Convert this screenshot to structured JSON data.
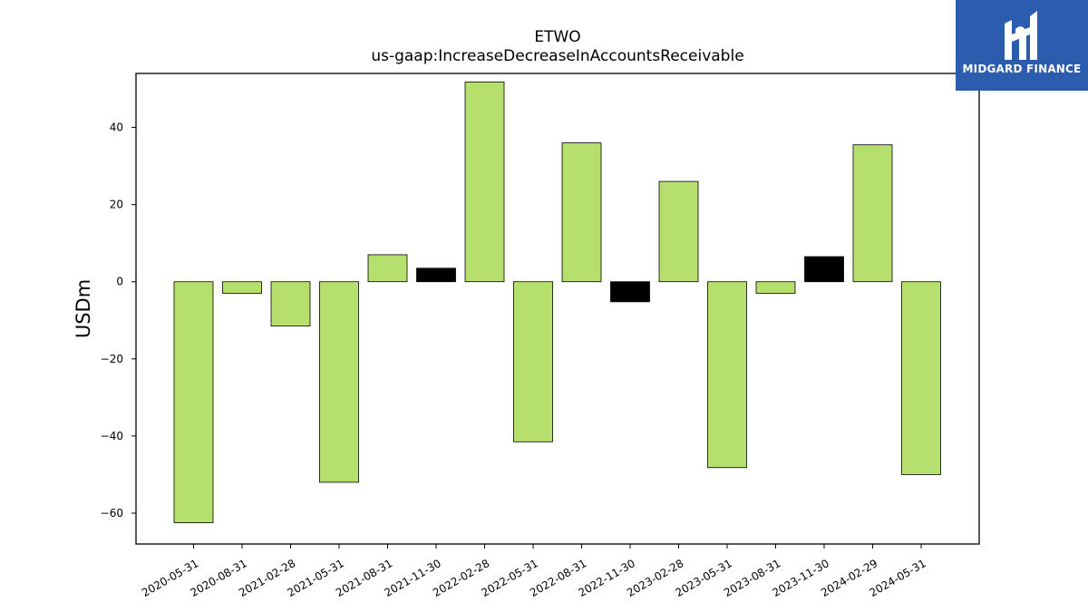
{
  "chart_data": {
    "type": "bar",
    "title": "ETWO",
    "subtitle": "us-gaap:IncreaseDecreaseInAccountsReceivable",
    "xlabel": "",
    "ylabel": "USDm",
    "ylim": [
      -68,
      54
    ],
    "yticks": [
      40,
      20,
      0,
      -20,
      -40,
      -60
    ],
    "grid": false,
    "categories": [
      "2020-05-31",
      "2020-08-31",
      "2021-02-28",
      "2021-05-31",
      "2021-08-31",
      "2021-11-30",
      "2022-02-28",
      "2022-05-31",
      "2022-08-31",
      "2022-11-30",
      "2023-02-28",
      "2023-05-31",
      "2023-08-31",
      "2023-11-30",
      "2024-02-29",
      "2024-05-31"
    ],
    "values": [
      -62.5,
      -3.0,
      -11.5,
      -52.0,
      7.0,
      3.5,
      51.8,
      -41.5,
      36.0,
      -5.2,
      26.0,
      -48.2,
      -3.0,
      6.5,
      35.5,
      -50.0
    ],
    "bar_colors": [
      "#b5e06e",
      "#b5e06e",
      "#b5e06e",
      "#b5e06e",
      "#b5e06e",
      "#000000",
      "#b5e06e",
      "#b5e06e",
      "#b5e06e",
      "#000000",
      "#b5e06e",
      "#b5e06e",
      "#b5e06e",
      "#000000",
      "#b5e06e",
      "#b5e06e"
    ]
  },
  "logo": {
    "text": "MIDGARD FINANCE",
    "background": "#2b5cae"
  }
}
